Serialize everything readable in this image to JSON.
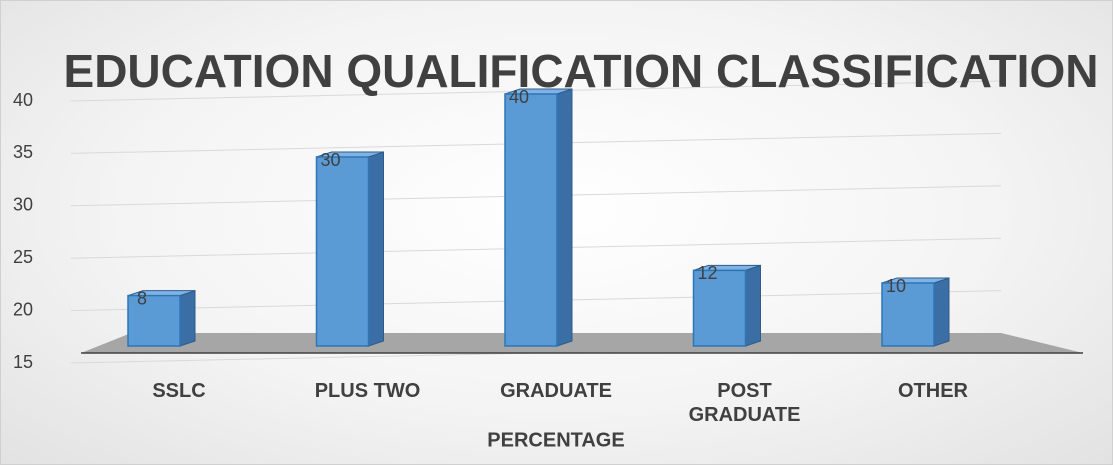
{
  "chart_data": {
    "type": "bar3d",
    "title": "EDUCATION QUALIFICATION CLASSIFICATION",
    "x_label": "PERCENTAGE",
    "categories": [
      "SSLC",
      "PLUS TWO",
      "GRADUATE",
      "POST GRADUATE",
      "OTHER"
    ],
    "values": [
      8,
      30,
      40,
      12,
      10
    ],
    "color": "#5b9bd5",
    "ylim": [
      15,
      40
    ],
    "yticks": [
      15,
      20,
      25,
      30,
      35,
      40
    ],
    "grid": true
  }
}
